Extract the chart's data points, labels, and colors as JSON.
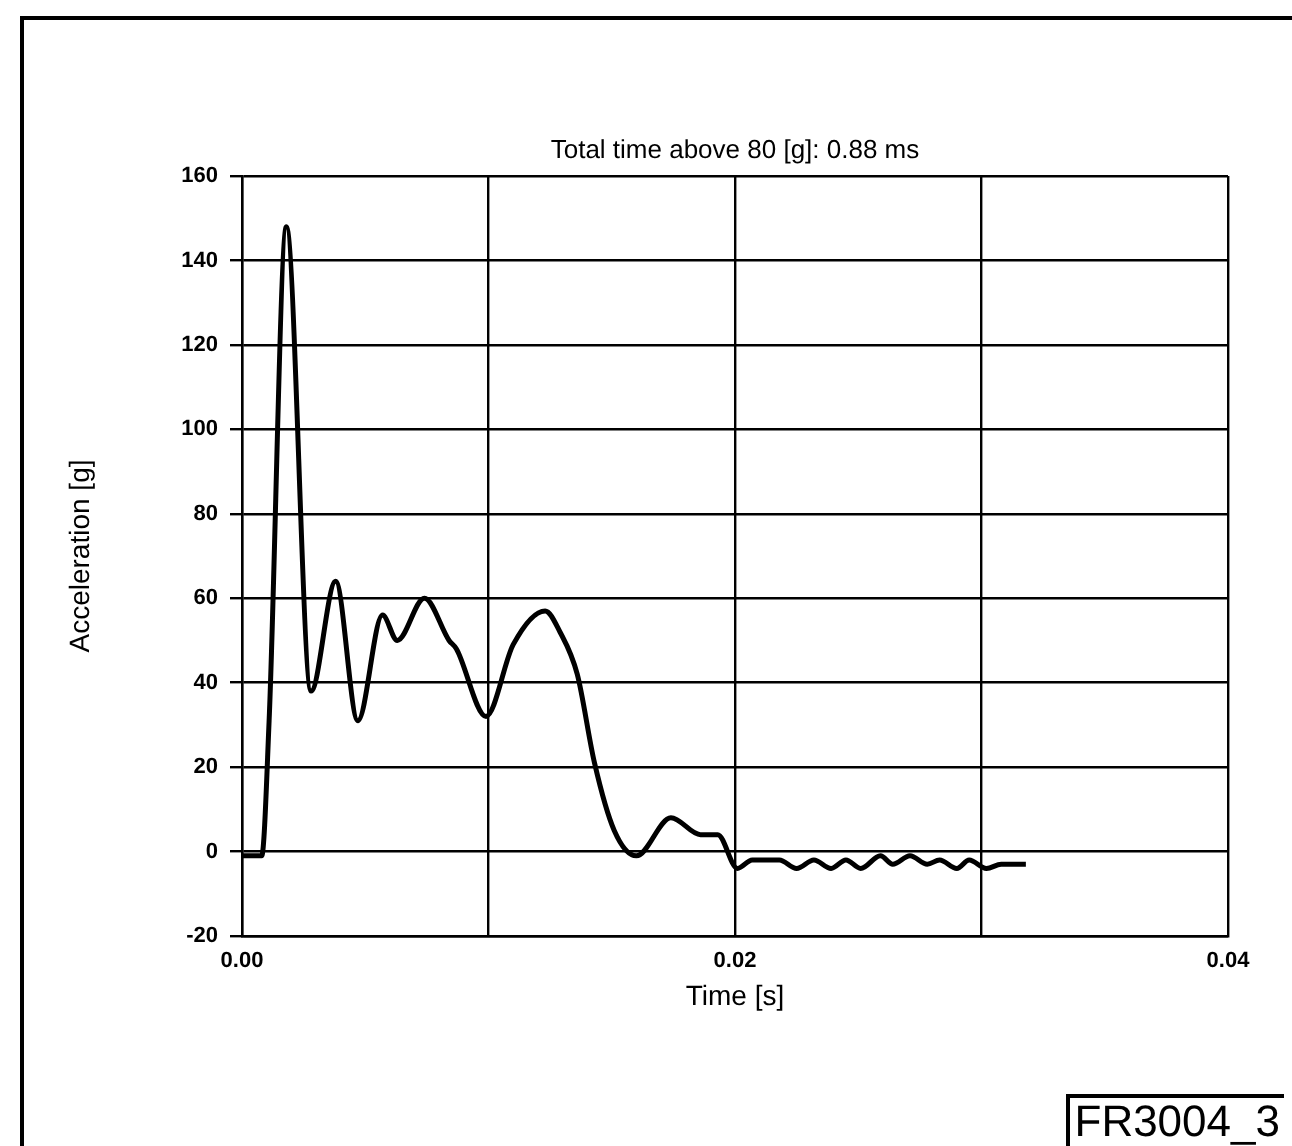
{
  "chart_data": {
    "type": "line",
    "title": "Total time above 80 [g]: 0.88 ms",
    "xlabel": "Time [s]",
    "ylabel": "Acceleration [g]",
    "x": [
      0,
      0.0008,
      0.0011,
      0.0018,
      0.0028,
      0.0038,
      0.0047,
      0.0057,
      0.0063,
      0.0074,
      0.0084,
      0.0087,
      0.0099,
      0.011,
      0.0123,
      0.0129,
      0.0136,
      0.0143,
      0.0151,
      0.016,
      0.0174,
      0.0186,
      0.0193,
      0.0201,
      0.0207,
      0.0213,
      0.0218,
      0.0225,
      0.0232,
      0.0239,
      0.0245,
      0.0251,
      0.0259,
      0.0264,
      0.0271,
      0.0278,
      0.0283,
      0.029,
      0.0295,
      0.0302,
      0.0308,
      0.0313,
      0.0318
    ],
    "series": [
      {
        "color": "#000000",
        "values": [
          -1,
          -1,
          31,
          148,
          38,
          64,
          31,
          56,
          50,
          60,
          50,
          48,
          32,
          49,
          57,
          52,
          42,
          21,
          5,
          -1,
          8,
          4,
          4,
          -4,
          -2,
          -2,
          -2,
          -4,
          -2,
          -4,
          -2,
          -4,
          -1,
          -3,
          -1,
          -3,
          -2,
          -4,
          -2,
          -4,
          -3,
          -3,
          -3
        ]
      }
    ],
    "xlim": [
      0,
      0.04
    ],
    "xticks": [
      {
        "value": 0,
        "label": "0.00"
      },
      {
        "value": 0.01,
        "label": null
      },
      {
        "value": 0.02,
        "label": "0.02"
      },
      {
        "value": 0.03,
        "label": null
      },
      {
        "value": 0.04,
        "label": "0.04"
      }
    ],
    "ylim": [
      -20,
      160
    ],
    "yticks": [
      -20,
      0,
      20,
      40,
      60,
      80,
      100,
      120,
      140,
      160
    ],
    "grid": true,
    "legend": false,
    "marker": "none",
    "line_style": "solid",
    "annotations": [
      "FR3004_3"
    ]
  }
}
